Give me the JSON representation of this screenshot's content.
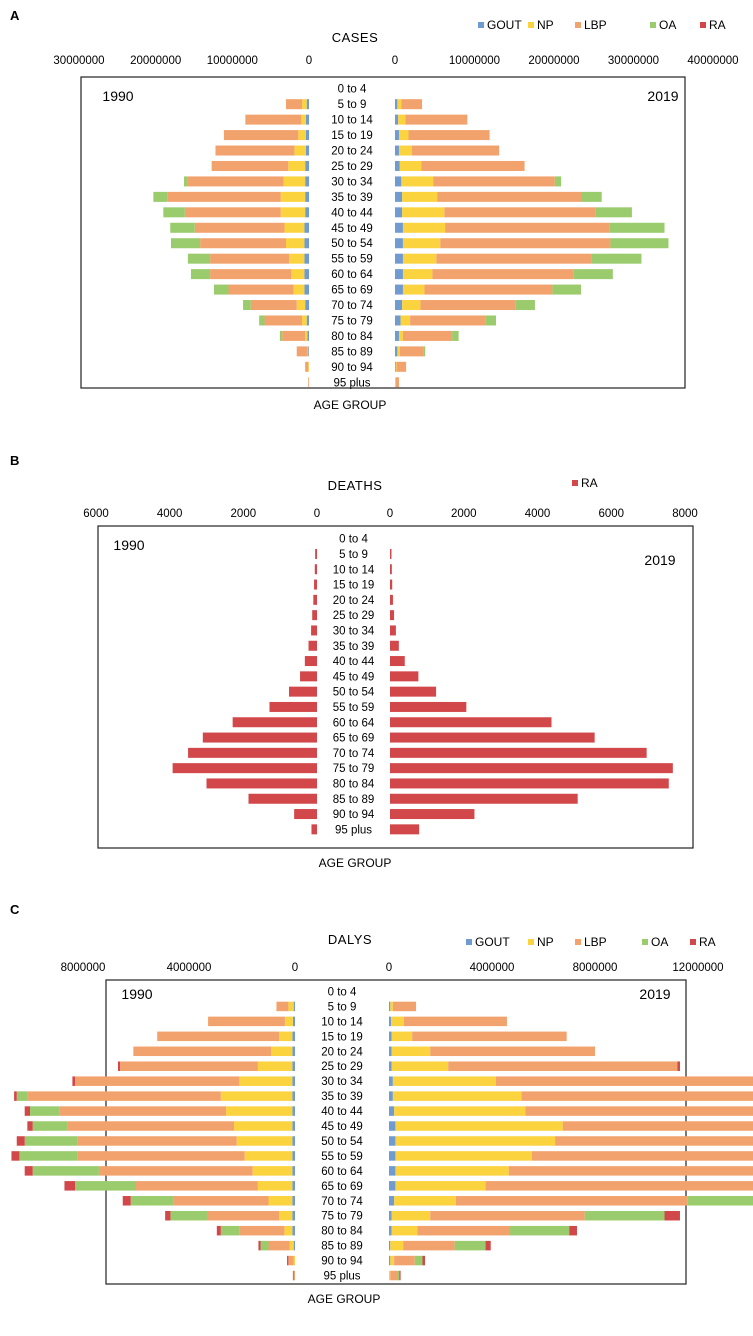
{
  "colors": {
    "GOUT": "#6f9bd1",
    "NP": "#fbd33f",
    "LBP": "#f2a36d",
    "OA": "#9acb6c",
    "RA": "#d2474a"
  },
  "chart_data": [
    {
      "panel": "A",
      "type": "bar",
      "title": "CASES",
      "xlabel": "AGE GROUP",
      "left_year": "1990",
      "right_year": "2019",
      "series_names": [
        "GOUT",
        "NP",
        "LBP",
        "OA",
        "RA"
      ],
      "categories": [
        "0 to 4",
        "5 to 9",
        "10 to 14",
        "15 to 19",
        "20 to 24",
        "25 to 29",
        "30 to 34",
        "35 to 39",
        "40 to 44",
        "45 to 49",
        "50 to 54",
        "55 to 59",
        "60 to 64",
        "65 to 69",
        "70 to 74",
        "75 to 79",
        "80 to 84",
        "85 to 89",
        "90 to 94",
        "95 plus"
      ],
      "left_axis": {
        "max": 30000000,
        "ticks": [
          "30000000",
          "20000000",
          "10000000",
          "0"
        ],
        "tick_values": [
          30000000,
          20000000,
          10000000,
          0
        ]
      },
      "right_axis": {
        "max": 40000000,
        "ticks": [
          "0",
          "10000000",
          "20000000",
          "30000000",
          "40000000"
        ],
        "tick_values": [
          0,
          10000000,
          20000000,
          30000000,
          40000000
        ]
      },
      "left_values": [
        [
          0,
          0,
          0,
          0,
          0
        ],
        [
          300000,
          600000,
          2100000,
          0,
          0
        ],
        [
          400000,
          600000,
          7300000,
          0,
          0
        ],
        [
          400000,
          1000000,
          9700000,
          0,
          0
        ],
        [
          400000,
          1500000,
          10300000,
          0,
          0
        ],
        [
          500000,
          2200000,
          10000000,
          0,
          0
        ],
        [
          500000,
          2800000,
          12500000,
          500000,
          0
        ],
        [
          500000,
          3200000,
          14800000,
          1800000,
          0
        ],
        [
          500000,
          3200000,
          12500000,
          2800000,
          0
        ],
        [
          600000,
          2600000,
          11700000,
          3200000,
          0
        ],
        [
          600000,
          2400000,
          11200000,
          3800000,
          0
        ],
        [
          600000,
          2000000,
          10300000,
          2900000,
          0
        ],
        [
          600000,
          1700000,
          10600000,
          2500000,
          0
        ],
        [
          600000,
          1400000,
          8500000,
          1900000,
          0
        ],
        [
          500000,
          1100000,
          6000000,
          1000000,
          0
        ],
        [
          300000,
          600000,
          4900000,
          700000,
          0
        ],
        [
          200000,
          300000,
          3000000,
          300000,
          0
        ],
        [
          100000,
          100000,
          1400000,
          0,
          0
        ],
        [
          0,
          100000,
          400000,
          0,
          0
        ],
        [
          0,
          0,
          100000,
          0,
          0
        ]
      ],
      "right_values": [
        [
          0,
          0,
          0,
          0,
          0
        ],
        [
          300000,
          500000,
          2600000,
          0,
          0
        ],
        [
          400000,
          900000,
          7800000,
          0,
          0
        ],
        [
          500000,
          1200000,
          10200000,
          0,
          0
        ],
        [
          500000,
          1600000,
          11000000,
          0,
          0
        ],
        [
          600000,
          2700000,
          13000000,
          0,
          0
        ],
        [
          800000,
          4000000,
          15300000,
          800000,
          0
        ],
        [
          900000,
          4400000,
          18100000,
          2600000,
          0
        ],
        [
          900000,
          5300000,
          19000000,
          4600000,
          0
        ],
        [
          1000000,
          5300000,
          20700000,
          6900000,
          0
        ],
        [
          1000000,
          4700000,
          21400000,
          7300000,
          0
        ],
        [
          1000000,
          4200000,
          19500000,
          6300000,
          0
        ],
        [
          1000000,
          3700000,
          17800000,
          4900000,
          0
        ],
        [
          1000000,
          2700000,
          16100000,
          3600000,
          0
        ],
        [
          900000,
          2300000,
          12000000,
          2400000,
          0
        ],
        [
          700000,
          1200000,
          9500000,
          1300000,
          0
        ],
        [
          500000,
          500000,
          6200000,
          800000,
          0
        ],
        [
          300000,
          300000,
          3000000,
          200000,
          0
        ],
        [
          100000,
          100000,
          1200000,
          0,
          0
        ],
        [
          0,
          100000,
          400000,
          0,
          0
        ]
      ]
    },
    {
      "panel": "B",
      "type": "bar",
      "title": "DEATHS",
      "xlabel": "AGE GROUP",
      "left_year": "1990",
      "right_year": "2019",
      "series_names": [
        "RA"
      ],
      "categories": [
        "0 to 4",
        "5 to 9",
        "10 to 14",
        "15 to 19",
        "20 to 24",
        "25 to 29",
        "30 to 34",
        "35 to 39",
        "40 to 44",
        "45 to 49",
        "50 to 54",
        "55 to 59",
        "60 to 64",
        "65 to 69",
        "70 to 74",
        "75 to 79",
        "80 to 84",
        "85 to 89",
        "90 to 94",
        "95 plus"
      ],
      "left_axis": {
        "max": 6000,
        "ticks": [
          "6000",
          "4000",
          "2000",
          "0"
        ],
        "tick_values": [
          6000,
          4000,
          2000,
          0
        ]
      },
      "right_axis": {
        "max": 8000,
        "ticks": [
          "0",
          "2000",
          "4000",
          "6000",
          "8000"
        ],
        "tick_values": [
          0,
          2000,
          4000,
          6000,
          8000
        ]
      },
      "left_values": [
        [
          0
        ],
        [
          50
        ],
        [
          60
        ],
        [
          80
        ],
        [
          100
        ],
        [
          130
        ],
        [
          160
        ],
        [
          230
        ],
        [
          330
        ],
        [
          460
        ],
        [
          760
        ],
        [
          1290
        ],
        [
          2290
        ],
        [
          3100
        ],
        [
          3500
        ],
        [
          3920
        ],
        [
          3000
        ],
        [
          1860
        ],
        [
          620
        ],
        [
          150
        ]
      ],
      "right_values": [
        [
          0
        ],
        [
          40
        ],
        [
          50
        ],
        [
          60
        ],
        [
          80
        ],
        [
          110
        ],
        [
          160
        ],
        [
          240
        ],
        [
          400
        ],
        [
          770
        ],
        [
          1250
        ],
        [
          2070
        ],
        [
          4380
        ],
        [
          5550
        ],
        [
          6960
        ],
        [
          7670
        ],
        [
          7560
        ],
        [
          5090
        ],
        [
          2290
        ],
        [
          790
        ]
      ]
    },
    {
      "panel": "C",
      "type": "bar",
      "title": "DALYS",
      "xlabel": "AGE GROUP",
      "left_year": "1990",
      "right_year": "2019",
      "series_names": [
        "GOUT",
        "NP",
        "LBP",
        "OA",
        "RA"
      ],
      "categories": [
        "0 to 4",
        "5 to 9",
        "10 to 14",
        "15 to 19",
        "20 to 24",
        "25 to 29",
        "30 to 34",
        "35 to 39",
        "40 to 44",
        "45 to 49",
        "50 to 54",
        "55 to 59",
        "60 to 64",
        "65 to 69",
        "70 to 74",
        "75 to 79",
        "80 to 84",
        "85 to 89",
        "90 to 94",
        "95 plus"
      ],
      "left_axis": {
        "max": 8000000,
        "ticks": [
          "8000000",
          "4000000",
          "0"
        ],
        "tick_values": [
          8000000,
          4000000,
          0
        ]
      },
      "right_axis": {
        "max": 12000000,
        "ticks": [
          "0",
          "4000000",
          "8000000",
          "12000000"
        ],
        "tick_values": [
          0,
          4000000,
          8000000,
          12000000
        ]
      },
      "left_values": [
        [
          0,
          0,
          0,
          0,
          0
        ],
        [
          50000,
          200000,
          450000,
          0,
          0
        ],
        [
          80000,
          300000,
          2900000,
          0,
          0
        ],
        [
          100000,
          500000,
          4600000,
          0,
          0
        ],
        [
          100000,
          800000,
          5200000,
          0,
          0
        ],
        [
          100000,
          1300000,
          5200000,
          0,
          80000
        ],
        [
          100000,
          2000000,
          6200000,
          0,
          100000
        ],
        [
          100000,
          2700000,
          7300000,
          400000,
          100000
        ],
        [
          100000,
          2500000,
          6300000,
          1100000,
          200000
        ],
        [
          100000,
          2200000,
          6300000,
          1300000,
          200000
        ],
        [
          100000,
          2100000,
          6000000,
          2000000,
          300000
        ],
        [
          100000,
          1800000,
          6300000,
          2200000,
          300000
        ],
        [
          100000,
          1500000,
          5800000,
          2500000,
          300000
        ],
        [
          100000,
          1300000,
          4600000,
          2300000,
          400000
        ],
        [
          100000,
          900000,
          3600000,
          1600000,
          300000
        ],
        [
          100000,
          500000,
          2700000,
          1400000,
          200000
        ],
        [
          100000,
          300000,
          1700000,
          700000,
          150000
        ],
        [
          50000,
          150000,
          800000,
          300000,
          80000
        ],
        [
          0,
          50000,
          200000,
          0,
          50000
        ],
        [
          0,
          0,
          50000,
          0,
          30000
        ]
      ],
      "right_values": [
        [
          0,
          0,
          0,
          0,
          0
        ],
        [
          50000,
          100000,
          900000,
          0,
          0
        ],
        [
          80000,
          500000,
          4000000,
          0,
          0
        ],
        [
          100000,
          800000,
          6000000,
          0,
          0
        ],
        [
          100000,
          1500000,
          6400000,
          0,
          0
        ],
        [
          100000,
          2200000,
          8900000,
          0,
          100000
        ],
        [
          150000,
          4000000,
          10500000,
          0,
          200000
        ],
        [
          150000,
          5000000,
          12700000,
          1100000,
          200000
        ],
        [
          200000,
          5100000,
          13300000,
          1600000,
          300000
        ],
        [
          250000,
          6500000,
          15500000,
          3300000,
          600000
        ],
        [
          250000,
          6200000,
          15900000,
          5000000,
          700000
        ],
        [
          250000,
          5300000,
          15500000,
          6400000,
          900000
        ],
        [
          250000,
          4400000,
          13900000,
          6200000,
          900000
        ],
        [
          250000,
          3500000,
          10700000,
          6100000,
          900000
        ],
        [
          200000,
          2400000,
          9000000,
          4300000,
          800000
        ],
        [
          100000,
          1500000,
          6000000,
          3100000,
          600000
        ],
        [
          100000,
          1000000,
          3600000,
          2300000,
          300000
        ],
        [
          50000,
          500000,
          2000000,
          1200000,
          200000
        ],
        [
          50000,
          150000,
          800000,
          300000,
          100000
        ],
        [
          0,
          50000,
          300000,
          50000,
          50000
        ]
      ]
    }
  ]
}
